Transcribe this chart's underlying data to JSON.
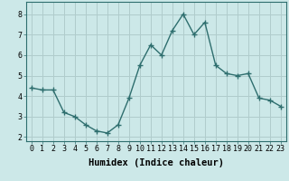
{
  "x": [
    0,
    1,
    2,
    3,
    4,
    5,
    6,
    7,
    8,
    9,
    10,
    11,
    12,
    13,
    14,
    15,
    16,
    17,
    18,
    19,
    20,
    21,
    22,
    23
  ],
  "y": [
    4.4,
    4.3,
    4.3,
    3.2,
    3.0,
    2.6,
    2.3,
    2.2,
    2.6,
    3.9,
    5.5,
    6.5,
    6.0,
    7.2,
    8.0,
    7.0,
    7.6,
    5.5,
    5.1,
    5.0,
    5.1,
    3.9,
    3.8,
    3.5
  ],
  "line_color": "#2e6e6e",
  "marker": "+",
  "marker_size": 4,
  "bg_color": "#cce8e8",
  "grid_color": "#b0cccc",
  "xlabel": "Humidex (Indice chaleur)",
  "xlabel_fontsize": 7.5,
  "ylim": [
    1.8,
    8.6
  ],
  "xlim": [
    -0.5,
    23.5
  ],
  "yticks": [
    2,
    3,
    4,
    5,
    6,
    7,
    8
  ],
  "xticks": [
    0,
    1,
    2,
    3,
    4,
    5,
    6,
    7,
    8,
    9,
    10,
    11,
    12,
    13,
    14,
    15,
    16,
    17,
    18,
    19,
    20,
    21,
    22,
    23
  ],
  "tick_fontsize": 6,
  "line_width": 1.0
}
